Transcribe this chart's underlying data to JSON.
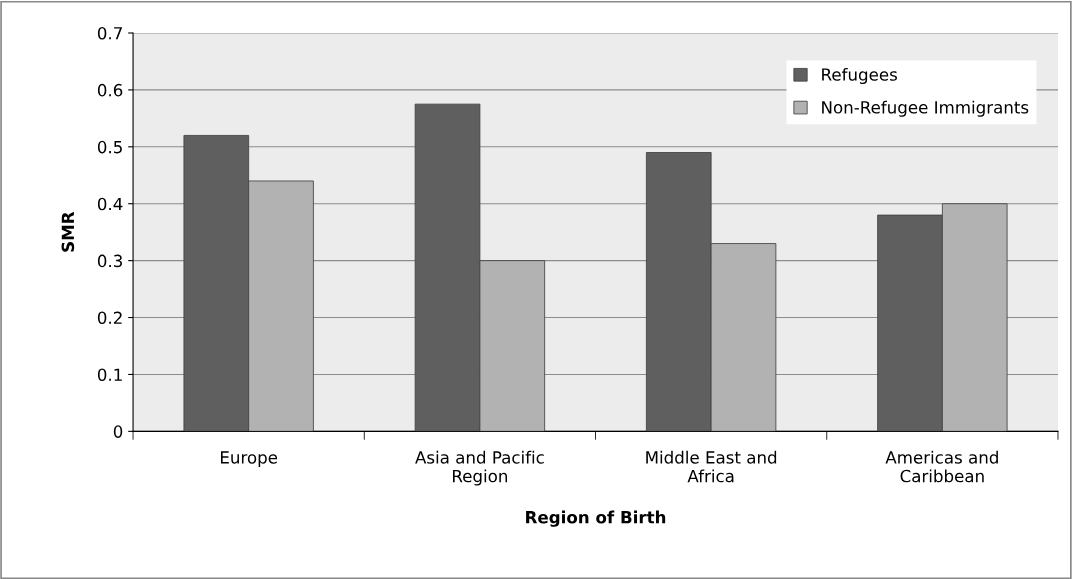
{
  "chart_data": {
    "type": "bar",
    "xlabel": "Region of Birth",
    "ylabel": "SMR",
    "categories": [
      "Europe",
      "Asia and Pacific\nRegion",
      "Middle East and\nAfrica",
      "Americas and\nCaribbean"
    ],
    "series": [
      {
        "name": "Refugees",
        "color": "#5f5f5f",
        "values": [
          0.52,
          0.575,
          0.49,
          0.38
        ]
      },
      {
        "name": "Non-Refugee Immigrants",
        "color": "#b2b2b2",
        "values": [
          0.44,
          0.3,
          0.33,
          0.4
        ]
      }
    ],
    "ylim": [
      0,
      0.7
    ],
    "yticks": [
      0,
      0.1,
      0.2,
      0.3,
      0.4,
      0.5,
      0.6,
      0.7
    ],
    "grid": "y",
    "legend": "top right"
  }
}
